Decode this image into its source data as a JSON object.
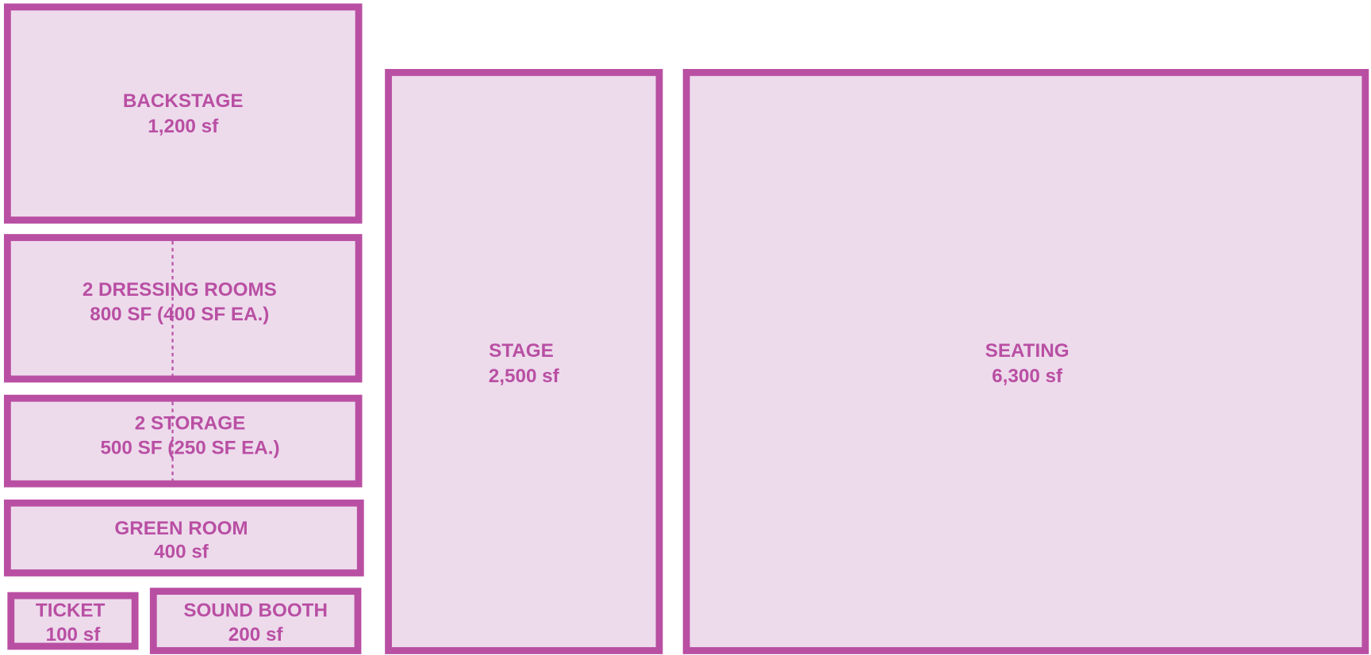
{
  "rooms": [
    {
      "name": "BACKSTAGE",
      "area": "1,200 sf"
    },
    {
      "name": "2 DRESSING ROOMS",
      "area": "800 SF (400 SF EA.)"
    },
    {
      "name": "2 STORAGE",
      "area": "500 SF (250 SF EA.)"
    },
    {
      "name": "GREEN ROOM",
      "area": "400 sf"
    },
    {
      "name": "TICKET",
      "area": "100 sf"
    },
    {
      "name": "SOUND BOOTH",
      "area": "200 sf"
    },
    {
      "name": "STAGE",
      "area": "2,500 sf"
    },
    {
      "name": "SEATING",
      "area": "6,300 sf"
    }
  ]
}
